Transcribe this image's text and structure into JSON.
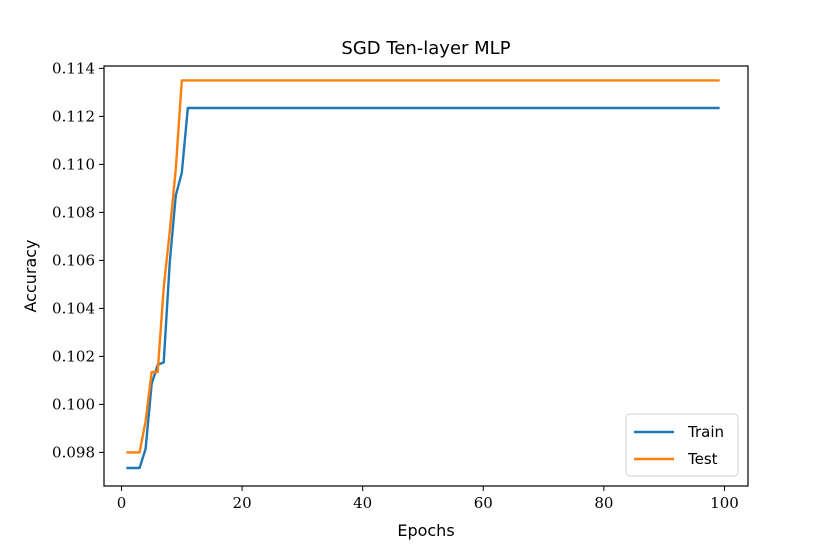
{
  "chart_data": {
    "type": "line",
    "title": "SGD Ten-layer MLP",
    "xlabel": "Epochs",
    "ylabel": "Accuracy",
    "xlim": [
      -2.9,
      103.9
    ],
    "ylim": [
      0.0966,
      0.1141
    ],
    "xticks": [
      0,
      20,
      40,
      60,
      80,
      100
    ],
    "yticks": [
      0.098,
      0.1,
      0.102,
      0.104,
      0.106,
      0.108,
      0.11,
      0.112,
      0.114
    ],
    "xtick_labels": [
      "0",
      "20",
      "40",
      "60",
      "80",
      "100"
    ],
    "ytick_labels": [
      "0.098",
      "0.100",
      "0.102",
      "0.104",
      "0.106",
      "0.108",
      "0.110",
      "0.112",
      "0.114"
    ],
    "grid": false,
    "legend_position": "bottom-right",
    "series": [
      {
        "name": "Train",
        "color": "#1f77b4",
        "x": [
          1,
          2,
          3,
          4,
          5,
          6,
          7,
          8,
          9,
          10,
          11,
          99
        ],
        "y": [
          0.09735,
          0.09735,
          0.09735,
          0.09815,
          0.10085,
          0.10165,
          0.10175,
          0.1059,
          0.1087,
          0.10965,
          0.11235,
          0.11235
        ]
      },
      {
        "name": "Test",
        "color": "#ff7f0e",
        "x": [
          1,
          2,
          3,
          4,
          5,
          6,
          7,
          8,
          9,
          10,
          99
        ],
        "y": [
          0.098,
          0.098,
          0.098,
          0.0993,
          0.10135,
          0.10135,
          0.10485,
          0.1072,
          0.1098,
          0.1135,
          0.1135
        ]
      }
    ]
  }
}
